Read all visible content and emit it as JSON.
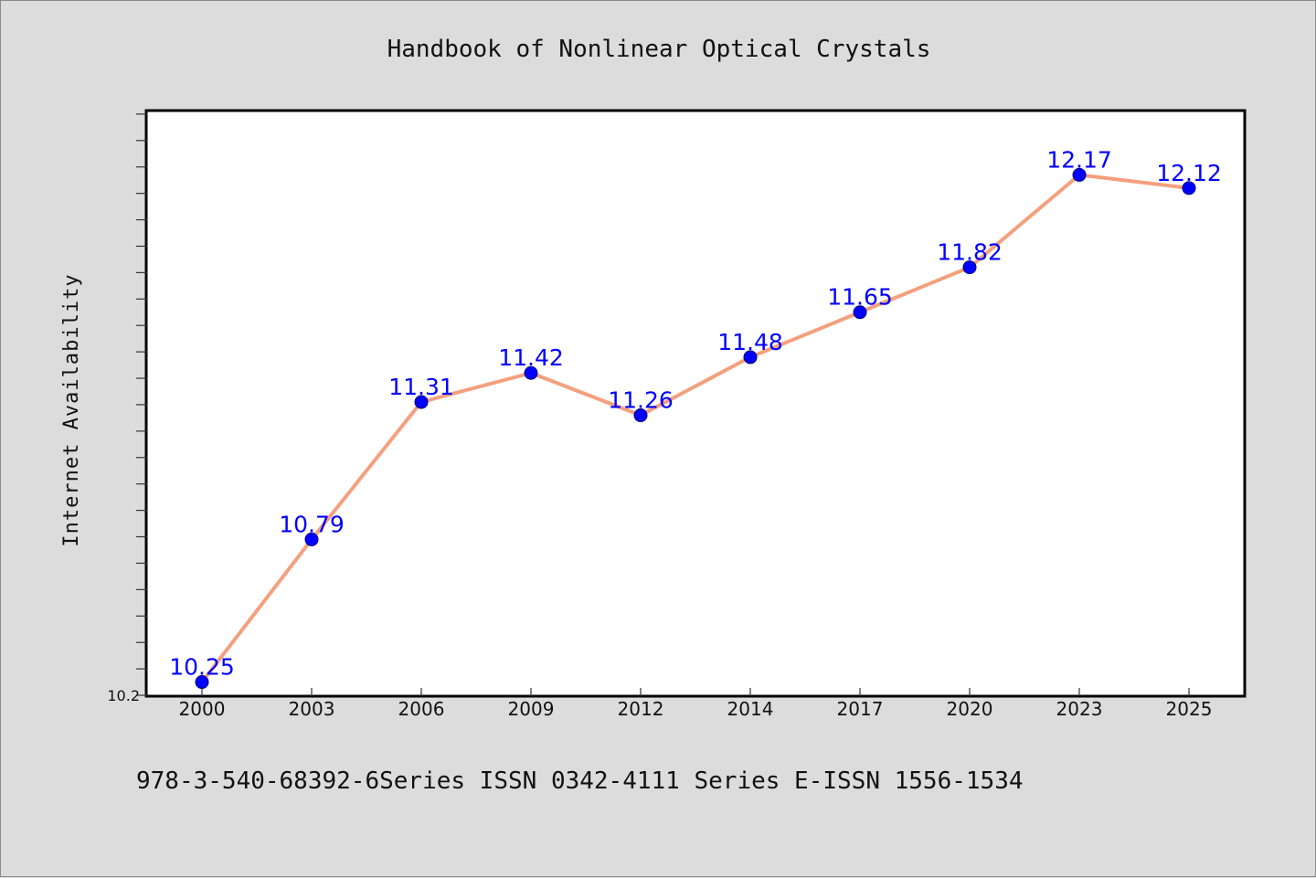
{
  "colors": {
    "background": "#dcdcdc",
    "plot_background": "#ffffff",
    "line": "#f4a07e",
    "marker": "#0000ff",
    "data_label": "#0000ff"
  },
  "chart_data": {
    "type": "line",
    "title": "Handbook of Nonlinear Optical Crystals",
    "xlabel": "",
    "ylabel": "Internet Availability",
    "categories": [
      "2000",
      "2003",
      "2006",
      "2009",
      "2012",
      "2014",
      "2017",
      "2020",
      "2023",
      "2025"
    ],
    "series": [
      {
        "values": [
          10.25,
          10.79,
          11.31,
          11.42,
          11.26,
          11.48,
          11.65,
          11.82,
          12.17,
          12.12
        ],
        "labels": [
          "10.25",
          "10.79",
          "11.31",
          "11.42",
          "11.26",
          "11.48",
          "11.65",
          "11.82",
          "12.17",
          "12.12"
        ]
      }
    ],
    "ylim": [
      10.2,
      12.41
    ],
    "y_tick_labels": [
      "10.2"
    ],
    "y_minor_tick_step": 0.1,
    "grid": false,
    "legend": "none"
  },
  "footer": {
    "text": "978-3-540-68392-6Series ISSN 0342-4111 Series E-ISSN 1556-1534"
  }
}
